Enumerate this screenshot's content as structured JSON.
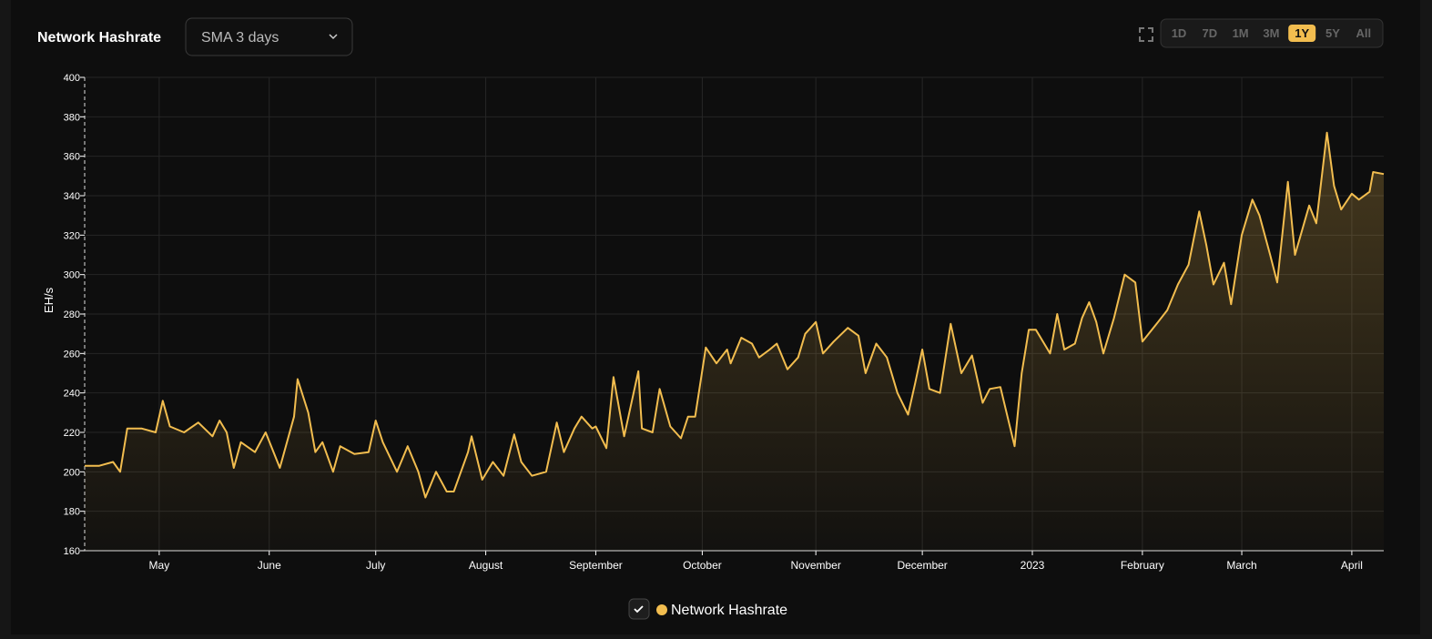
{
  "header": {
    "title": "Network Hashrate",
    "dropdown": "SMA 3 days",
    "ranges": [
      {
        "label": "1D"
      },
      {
        "label": "7D"
      },
      {
        "label": "1M"
      },
      {
        "label": "3M"
      },
      {
        "label": "1Y",
        "selected": true
      },
      {
        "label": "5Y"
      },
      {
        "label": "All"
      }
    ]
  },
  "chart_data": {
    "type": "line",
    "ylabel": "EH/s",
    "grid": true,
    "x": [
      0,
      4,
      8,
      10,
      12,
      16,
      20,
      22,
      24,
      28,
      32,
      36,
      38,
      40,
      42,
      44,
      48,
      51,
      55,
      59,
      60,
      63,
      65,
      67,
      70,
      72,
      76,
      80,
      82,
      84,
      88,
      91,
      94,
      96,
      99,
      102,
      104,
      108,
      109,
      112,
      115,
      118,
      121,
      123,
      126,
      130,
      133,
      135,
      138,
      140,
      143,
      144,
      147,
      149,
      152,
      156,
      157,
      160,
      162,
      165,
      168,
      170,
      172,
      175,
      178,
      181,
      182,
      185,
      188,
      190,
      193,
      195,
      198,
      201,
      203,
      206,
      208,
      211,
      215,
      218,
      220,
      223,
      226,
      229,
      232,
      234,
      236,
      238,
      241,
      244,
      247,
      250,
      253,
      255,
      258,
      260,
      262,
      264,
      266,
      268,
      272,
      274,
      276,
      279,
      281,
      283,
      285,
      287,
      290,
      293,
      296,
      298,
      302,
      305,
      308,
      311,
      314,
      316,
      318,
      321,
      323,
      326,
      329,
      331,
      334,
      336,
      339,
      341,
      345,
      347,
      350,
      352,
      354,
      357,
      359,
      362,
      363,
      366
    ],
    "series": [
      {
        "name": "Network Hashrate",
        "color": "#f2bd4f",
        "values": [
          203,
          203,
          205,
          200,
          222,
          222,
          220,
          236,
          223,
          220,
          225,
          218,
          226,
          220,
          202,
          215,
          210,
          220,
          202,
          228,
          247,
          230,
          210,
          215,
          200,
          213,
          209,
          210,
          226,
          215,
          200,
          213,
          200,
          187,
          200,
          190,
          190,
          210,
          218,
          196,
          205,
          198,
          219,
          205,
          198,
          200,
          225,
          210,
          222,
          228,
          222,
          223,
          212,
          248,
          218,
          251,
          222,
          220,
          242,
          223,
          217,
          228,
          228,
          263,
          255,
          262,
          255,
          268,
          265,
          258,
          262,
          265,
          252,
          258,
          270,
          276,
          260,
          266,
          273,
          269,
          250,
          265,
          258,
          240,
          229,
          245,
          262,
          242,
          240,
          275,
          250,
          259,
          235,
          242,
          243,
          228,
          213,
          250,
          272,
          272,
          260,
          280,
          262,
          265,
          278,
          286,
          276,
          260,
          278,
          300,
          296,
          266,
          275,
          282,
          295,
          305,
          332,
          315,
          295,
          306,
          285,
          320,
          338,
          330,
          310,
          296,
          347,
          310,
          335,
          326,
          372,
          345,
          333,
          341,
          338,
          342,
          352,
          351
        ]
      }
    ],
    "xlim": [
      0,
      366
    ],
    "xticks": [
      {
        "value": 21,
        "label": "May"
      },
      {
        "value": 52,
        "label": "June"
      },
      {
        "value": 82,
        "label": "July"
      },
      {
        "value": 113,
        "label": "August"
      },
      {
        "value": 144,
        "label": "September"
      },
      {
        "value": 174,
        "label": "October"
      },
      {
        "value": 206,
        "label": "November"
      },
      {
        "value": 236,
        "label": "December"
      },
      {
        "value": 267,
        "label": "2023"
      },
      {
        "value": 298,
        "label": "February"
      },
      {
        "value": 326,
        "label": "March"
      },
      {
        "value": 357,
        "label": "April"
      }
    ],
    "ylim": [
      160,
      400
    ],
    "yticks": [
      160,
      180,
      200,
      220,
      240,
      260,
      280,
      300,
      320,
      340,
      360,
      380,
      400
    ]
  }
}
